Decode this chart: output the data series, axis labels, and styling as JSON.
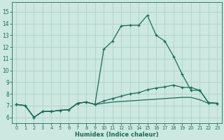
{
  "title": "",
  "xlabel": "Humidex (Indice chaleur)",
  "ylabel": "",
  "bg_color": "#cce8e0",
  "line_color": "#1a6b5a",
  "grid_color": "#aaccc4",
  "xlim": [
    -0.5,
    23.5
  ],
  "ylim": [
    5.5,
    15.8
  ],
  "yticks": [
    6,
    7,
    8,
    9,
    10,
    11,
    12,
    13,
    14,
    15
  ],
  "xticks": [
    0,
    1,
    2,
    3,
    4,
    5,
    6,
    7,
    8,
    9,
    10,
    11,
    12,
    13,
    14,
    15,
    16,
    17,
    18,
    19,
    20,
    21,
    22,
    23
  ],
  "series1": [
    [
      0,
      7.1
    ],
    [
      1,
      7.0
    ],
    [
      2,
      6.0
    ],
    [
      3,
      6.5
    ],
    [
      4,
      6.5
    ],
    [
      5,
      6.6
    ],
    [
      6,
      6.65
    ],
    [
      7,
      7.2
    ],
    [
      8,
      7.3
    ],
    [
      9,
      7.1
    ],
    [
      10,
      11.8
    ],
    [
      11,
      12.5
    ],
    [
      12,
      13.8
    ],
    [
      13,
      13.85
    ],
    [
      14,
      13.85
    ],
    [
      15,
      14.7
    ],
    [
      16,
      13.0
    ],
    [
      17,
      12.5
    ],
    [
      18,
      11.2
    ],
    [
      19,
      9.65
    ],
    [
      20,
      8.3
    ],
    [
      21,
      8.3
    ],
    [
      22,
      7.25
    ],
    [
      23,
      7.2
    ]
  ],
  "series2": [
    [
      0,
      7.1
    ],
    [
      1,
      7.0
    ],
    [
      2,
      6.0
    ],
    [
      3,
      6.5
    ],
    [
      4,
      6.5
    ],
    [
      5,
      6.6
    ],
    [
      6,
      6.65
    ],
    [
      7,
      7.2
    ],
    [
      8,
      7.3
    ],
    [
      9,
      7.1
    ],
    [
      10,
      7.4
    ],
    [
      11,
      7.6
    ],
    [
      12,
      7.8
    ],
    [
      13,
      8.0
    ],
    [
      14,
      8.1
    ],
    [
      15,
      8.35
    ],
    [
      16,
      8.5
    ],
    [
      17,
      8.6
    ],
    [
      18,
      8.75
    ],
    [
      19,
      8.55
    ],
    [
      20,
      8.55
    ],
    [
      21,
      8.3
    ],
    [
      22,
      7.25
    ],
    [
      23,
      7.2
    ]
  ],
  "series3": [
    [
      0,
      7.1
    ],
    [
      1,
      7.0
    ],
    [
      2,
      6.0
    ],
    [
      3,
      6.5
    ],
    [
      4,
      6.5
    ],
    [
      5,
      6.6
    ],
    [
      6,
      6.65
    ],
    [
      7,
      7.2
    ],
    [
      8,
      7.3
    ],
    [
      9,
      7.1
    ],
    [
      10,
      7.2
    ],
    [
      11,
      7.3
    ],
    [
      12,
      7.35
    ],
    [
      13,
      7.4
    ],
    [
      14,
      7.45
    ],
    [
      15,
      7.5
    ],
    [
      16,
      7.55
    ],
    [
      17,
      7.6
    ],
    [
      18,
      7.65
    ],
    [
      19,
      7.7
    ],
    [
      20,
      7.7
    ],
    [
      21,
      7.5
    ],
    [
      22,
      7.2
    ],
    [
      23,
      7.2
    ]
  ]
}
